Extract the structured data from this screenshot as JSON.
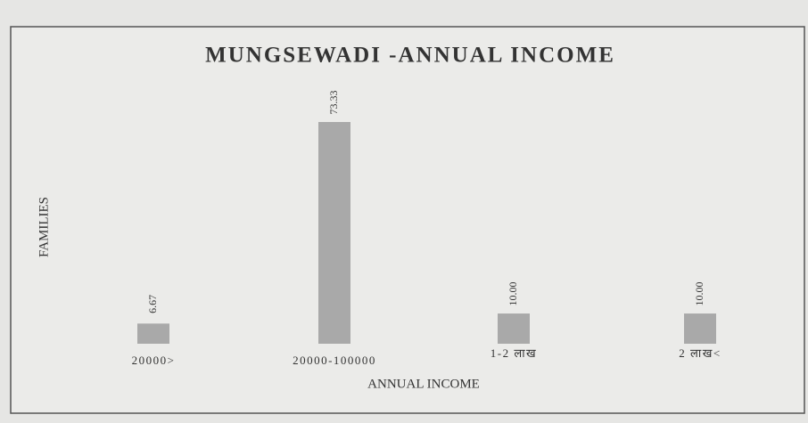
{
  "chart_data": {
    "type": "bar",
    "title": "MUNGSEWADI -ANNUAL INCOME",
    "x_label": "ANNUAL INCOME",
    "y_label": "FAMILIES",
    "categories": [
      "20000>",
      "20000-100000",
      "1-2 लाख",
      "2 लाख<"
    ],
    "values": [
      6.67,
      73.33,
      10,
      10
    ],
    "value_labels": [
      "6.67",
      "73.33",
      "10.00",
      "10.00"
    ],
    "color": "#a9a9a9"
  }
}
